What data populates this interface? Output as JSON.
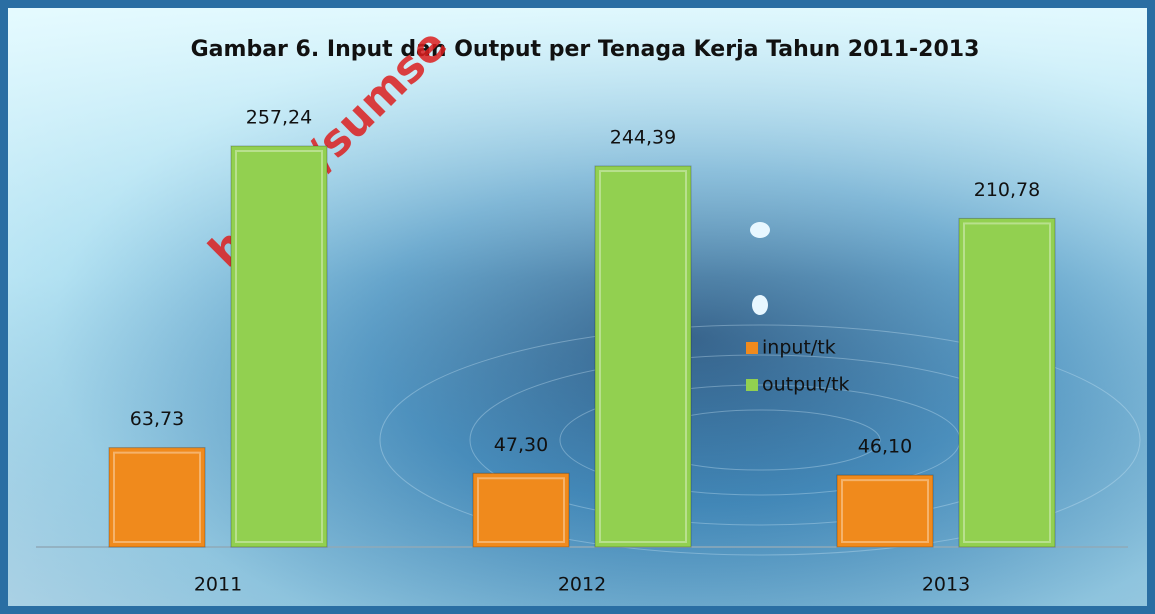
{
  "chart_data": {
    "type": "bar",
    "title": "Gambar 6. Input dan Output per Tenaga Kerja Tahun 2011-2013",
    "watermark": "http://sumse",
    "categories": [
      "2011",
      "2012",
      "2013"
    ],
    "series": [
      {
        "name": "input/tk",
        "color": "#f08a1c",
        "values": [
          63.73,
          47.3,
          46.1
        ],
        "value_labels": [
          "63,73",
          "47,30",
          "46,10"
        ]
      },
      {
        "name": "output/tk",
        "color": "#92d050",
        "values": [
          257.24,
          244.39,
          210.78
        ],
        "value_labels": [
          "257,24",
          "244,39",
          "210,78"
        ]
      }
    ],
    "legend": "right"
  }
}
